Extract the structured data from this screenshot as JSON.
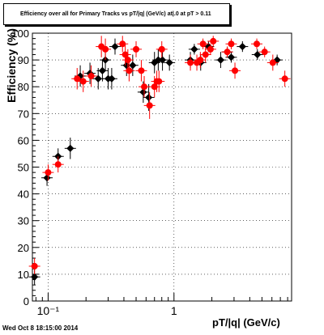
{
  "title": "Efficiency over all for Primary Tracks vs pT/|q| (GeV/c)    at|.0 at pT > 0.11",
  "footer": "Wed Oct  8 18:15:00 2014",
  "chart_data": {
    "type": "scatter",
    "title": "Efficiency over all for Primary Tracks vs pT/|q| (GeV/c)    at|.0 at pT > 0.11",
    "xlabel": "pT/|q| (GeV/c)",
    "ylabel": "Efficiency (%)",
    "x_scale": "log",
    "xlim": [
      0.075,
      8.6
    ],
    "ylim": [
      0,
      100
    ],
    "y_ticks": [
      0,
      10,
      20,
      30,
      40,
      50,
      60,
      70,
      80,
      90,
      100
    ],
    "x_tick_labels": [
      {
        "value": 0.1,
        "label": "10⁻¹"
      },
      {
        "value": 1,
        "label": "1"
      }
    ],
    "grid": true,
    "series": [
      {
        "color": "#000000",
        "x": [
          0.078,
          0.098,
          0.12,
          0.15,
          0.18,
          0.215,
          0.25,
          0.27,
          0.285,
          0.3,
          0.32,
          0.34,
          0.42,
          0.47,
          0.57,
          0.63,
          0.7,
          0.75,
          0.81,
          0.92,
          1.35,
          1.45,
          1.63,
          1.88,
          2.35,
          2.65,
          2.85,
          3.5,
          4.6,
          6.6
        ],
        "y": [
          9,
          46,
          54,
          57,
          84,
          85,
          83,
          86,
          90,
          83,
          83,
          95,
          88,
          88,
          78,
          76,
          89,
          90,
          90,
          89,
          90,
          94,
          89,
          95,
          90,
          93,
          91,
          95,
          92,
          90
        ],
        "yerr": [
          3,
          3,
          3,
          4,
          4,
          4,
          4,
          4,
          4,
          4,
          4,
          3,
          4,
          4,
          4,
          5,
          4,
          4,
          4,
          3,
          3,
          2,
          3,
          2,
          3,
          2,
          2,
          2,
          2,
          2
        ]
      },
      {
        "color": "#ff0000",
        "x": [
          0.078,
          0.1,
          0.12,
          0.17,
          0.19,
          0.22,
          0.265,
          0.285,
          0.39,
          0.41,
          0.43,
          0.44,
          0.5,
          0.55,
          0.58,
          0.64,
          0.7,
          0.73,
          0.76,
          0.8,
          1.35,
          1.52,
          1.62,
          1.7,
          1.78,
          1.95,
          2.05,
          2.65,
          2.85,
          3.05,
          4.55,
          5.25,
          6.1,
          7.6
        ],
        "y": [
          13,
          48,
          51,
          83,
          82,
          84,
          95,
          94,
          96,
          92,
          90,
          86,
          94,
          86,
          80,
          73,
          80,
          82,
          82,
          94,
          89,
          89,
          90,
          96,
          92,
          94,
          97,
          93,
          96,
          86,
          96,
          93,
          89,
          83
        ],
        "yerr": [
          3,
          3,
          3,
          4,
          4,
          4,
          4,
          4,
          3,
          4,
          4,
          4,
          3,
          4,
          4,
          5,
          4,
          4,
          4,
          3,
          3,
          3,
          3,
          2,
          3,
          2,
          2,
          2,
          2,
          3,
          2,
          2,
          3,
          3
        ]
      }
    ]
  }
}
